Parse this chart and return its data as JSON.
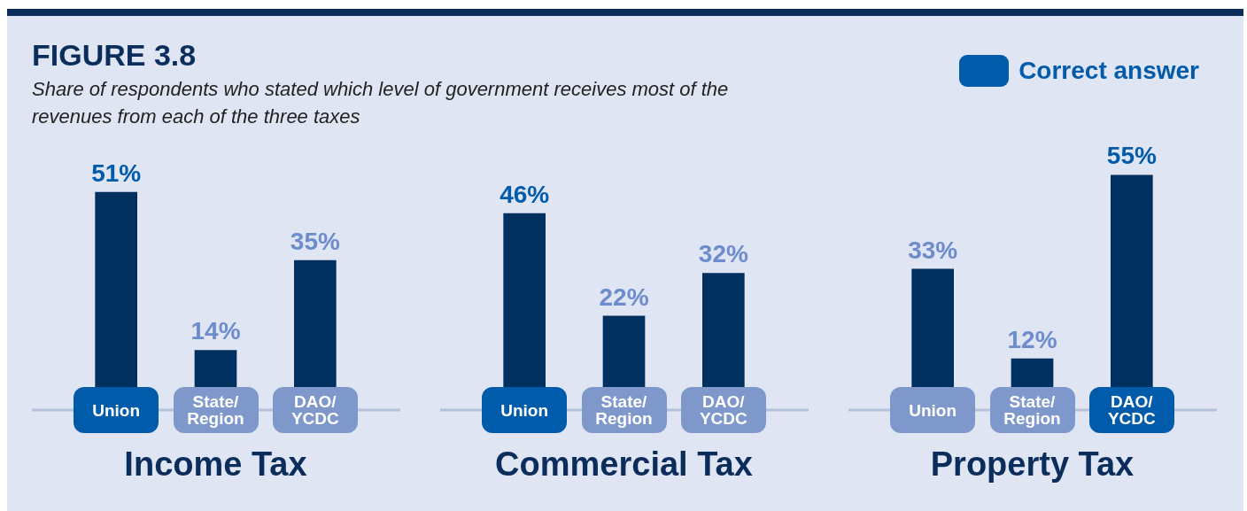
{
  "chart_data": [
    {
      "type": "bar",
      "title": "FIGURE 3.8",
      "subtitle": "Share of respondents who stated which level of government receives most of the revenues from each of the three taxes",
      "xlabel": "Income Tax",
      "categories": [
        "Union",
        "State/Region",
        "DAO/YCDC"
      ],
      "tick_labels": "x",
      "legend_title": "Correct answer",
      "series": [
        {
          "color": "#00305f",
          "values": [
            51,
            14,
            35
          ],
          "value_labels": [
            "51%",
            "14%",
            "35%"
          ]
        }
      ],
      "bands": [
        {
          "axis": "x",
          "from": "Union",
          "to": "Union",
          "color": "#005bab"
        }
      ]
    },
    {
      "type": "bar",
      "xlabel": "Commercial Tax",
      "categories": [
        "Union",
        "State/Region",
        "DAO/YCDC"
      ],
      "tick_labels": "x",
      "series": [
        {
          "color": "#00305f",
          "values": [
            46,
            22,
            32
          ],
          "value_labels": [
            "46%",
            "22%",
            "32%"
          ]
        }
      ],
      "bands": [
        {
          "axis": "x",
          "from": "Union",
          "to": "Union",
          "color": "#005bab"
        }
      ]
    },
    {
      "type": "bar",
      "xlabel": "Property Tax",
      "categories": [
        "Union",
        "State/Region",
        "DAO/YCDC"
      ],
      "tick_labels": "x",
      "series": [
        {
          "color": "#00305f",
          "values": [
            33,
            12,
            55
          ],
          "value_labels": [
            "33%",
            "12%",
            "55%"
          ]
        }
      ],
      "bands": [
        {
          "axis": "x",
          "from": "DAO/YCDC",
          "to": "DAO/YCDC",
          "color": "#005bab"
        }
      ]
    }
  ]
}
